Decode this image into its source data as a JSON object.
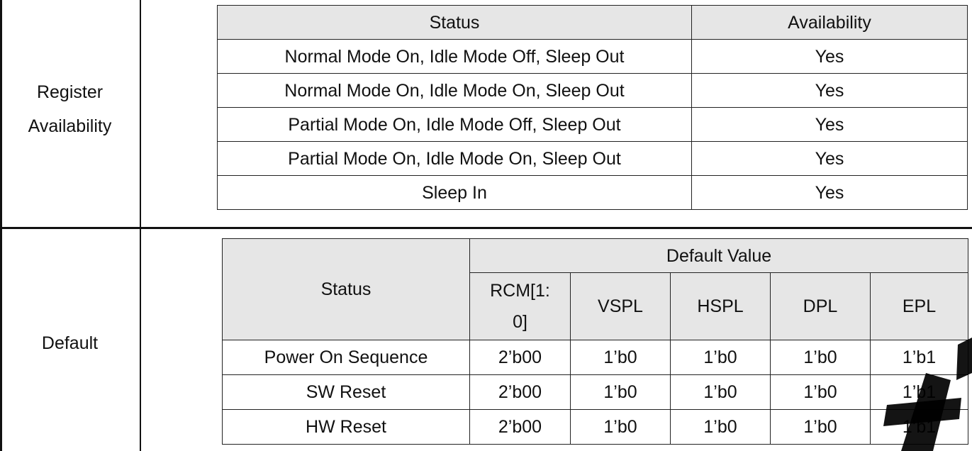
{
  "register_availability": {
    "label_line1": "Register",
    "label_line2": "Availability",
    "table": {
      "header_status": "Status",
      "header_availability": "Availability",
      "rows": [
        {
          "status": "Normal Mode On, Idle Mode Off, Sleep Out",
          "availability": "Yes"
        },
        {
          "status": "Normal Mode On, Idle Mode On, Sleep Out",
          "availability": "Yes"
        },
        {
          "status": "Partial Mode On, Idle Mode Off, Sleep Out",
          "availability": "Yes"
        },
        {
          "status": "Partial Mode On, Idle Mode On, Sleep Out",
          "availability": "Yes"
        },
        {
          "status": "Sleep In",
          "availability": "Yes"
        }
      ]
    }
  },
  "default": {
    "label": "Default",
    "table": {
      "header_status": "Status",
      "header_default_value": "Default Value",
      "columns": [
        "RCM[1:\n0]",
        "VSPL",
        "HSPL",
        "DPL",
        "EPL"
      ],
      "rows": [
        {
          "status": "Power On Sequence",
          "values": [
            "2’b00",
            "1’b0",
            "1’b0",
            "1’b0",
            "1’b1"
          ]
        },
        {
          "status": "SW Reset",
          "values": [
            "2’b00",
            "1’b0",
            "1’b0",
            "1’b0",
            "1’b1"
          ]
        },
        {
          "status": "HW Reset",
          "values": [
            "2’b00",
            "1’b0",
            "1’b0",
            "1’b0",
            "1’b1"
          ]
        }
      ]
    }
  },
  "colors": {
    "header_fill": "#e6e6e6",
    "border": "#111111",
    "watermark": "#000000"
  }
}
